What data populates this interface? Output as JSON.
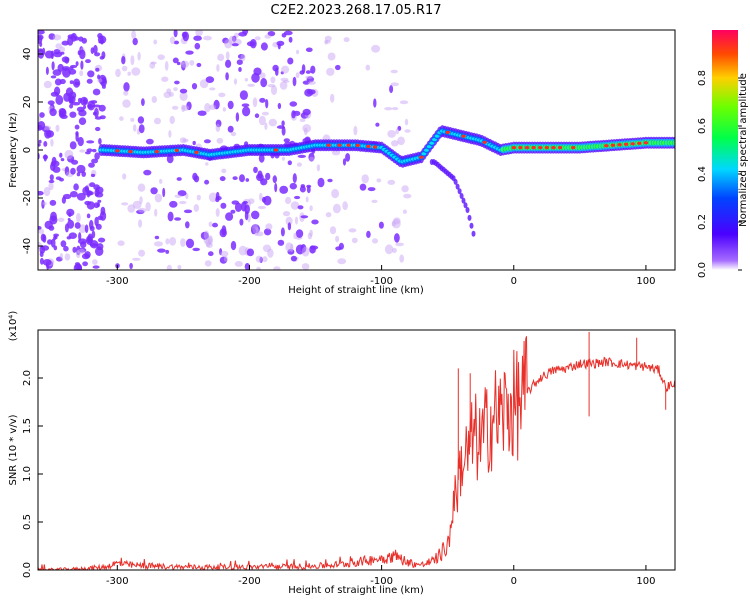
{
  "title": "C2E2.2023.268.17.05.R17",
  "colors": {
    "snr_line": "#e8302a",
    "spectral_purple": "#7b2cff",
    "spectral_lavender": "#c9a6f5"
  },
  "chart_data": [
    {
      "type": "heatmap",
      "name": "spectrogram",
      "xlabel": "Height of straight line (km)",
      "ylabel": "Frequency (Hz)",
      "xlim": [
        -360,
        122
      ],
      "ylim": [
        -50,
        50
      ],
      "xticks": [
        -300,
        -200,
        -100,
        0,
        100
      ],
      "yticks": [
        -40,
        -20,
        0,
        20,
        40
      ],
      "colorbar": {
        "label": "Normalized spectral amplitude",
        "range": [
          0,
          1
        ],
        "ticks": [
          "0.0",
          "0.2",
          "0.4",
          "0.6",
          "0.8"
        ],
        "colormap": "rainbow (violet to red)"
      },
      "ridge": [
        {
          "x": -310,
          "f": 0
        },
        {
          "x": -280,
          "f": -1
        },
        {
          "x": -250,
          "f": 0
        },
        {
          "x": -230,
          "f": -2
        },
        {
          "x": -200,
          "f": 0
        },
        {
          "x": -170,
          "f": 0
        },
        {
          "x": -150,
          "f": 2
        },
        {
          "x": -120,
          "f": 2
        },
        {
          "x": -100,
          "f": 1
        },
        {
          "x": -85,
          "f": -5
        },
        {
          "x": -70,
          "f": -3
        },
        {
          "x": -55,
          "f": 8
        },
        {
          "x": -40,
          "f": 6
        },
        {
          "x": -25,
          "f": 4
        },
        {
          "x": -10,
          "f": 0
        },
        {
          "x": 0,
          "f": 1
        },
        {
          "x": 50,
          "f": 1
        },
        {
          "x": 100,
          "f": 3
        },
        {
          "x": 120,
          "f": 3
        }
      ],
      "secondary_branch": [
        {
          "x": -60,
          "f": -5
        },
        {
          "x": -45,
          "f": -12
        },
        {
          "x": -35,
          "f": -25
        },
        {
          "x": -30,
          "f": -36
        }
      ]
    },
    {
      "type": "line",
      "name": "snr",
      "xlabel": "Height of straight line (km)",
      "ylabel": "SNR (10 * v/v)",
      "yscale_label": "(x10⁴)",
      "xlim": [
        -360,
        122
      ],
      "ylim": [
        0,
        2.5
      ],
      "xticks": [
        -300,
        -200,
        -100,
        0,
        100
      ],
      "yticks": [
        "0.0",
        "0.5",
        "1.0",
        "1.5",
        "2.0"
      ],
      "series": [
        {
          "x": [
            -360,
            -330,
            -310,
            -300,
            -290,
            -270,
            -250,
            -200,
            -150,
            -130,
            -120,
            -110,
            -100,
            -90,
            -80,
            -70,
            -60,
            -50,
            -45,
            -40,
            -35,
            -30,
            -25,
            -20,
            -15,
            -10,
            -5,
            0,
            10,
            20,
            30,
            40,
            50,
            60,
            70,
            80,
            90,
            100,
            110,
            115,
            122
          ],
          "y": [
            0.0,
            0.01,
            0.03,
            0.07,
            0.05,
            0.04,
            0.03,
            0.03,
            0.04,
            0.06,
            0.08,
            0.1,
            0.12,
            0.15,
            0.08,
            0.05,
            0.1,
            0.25,
            0.7,
            1.1,
            1.2,
            1.4,
            1.3,
            1.5,
            1.6,
            1.6,
            1.7,
            1.7,
            1.85,
            2.0,
            2.08,
            2.1,
            2.15,
            2.15,
            2.17,
            2.15,
            2.13,
            2.12,
            2.08,
            1.9,
            1.95
          ],
          "spikes": [
            {
              "x": -42,
              "y": 2.1
            },
            {
              "x": -33,
              "y": 2.05
            },
            {
              "x": 57,
              "y": 2.48
            },
            {
              "x": 93,
              "y": 2.42
            },
            {
              "x": 57,
              "y": 1.6
            },
            {
              "x": 115,
              "y": 1.67
            }
          ]
        }
      ]
    }
  ]
}
